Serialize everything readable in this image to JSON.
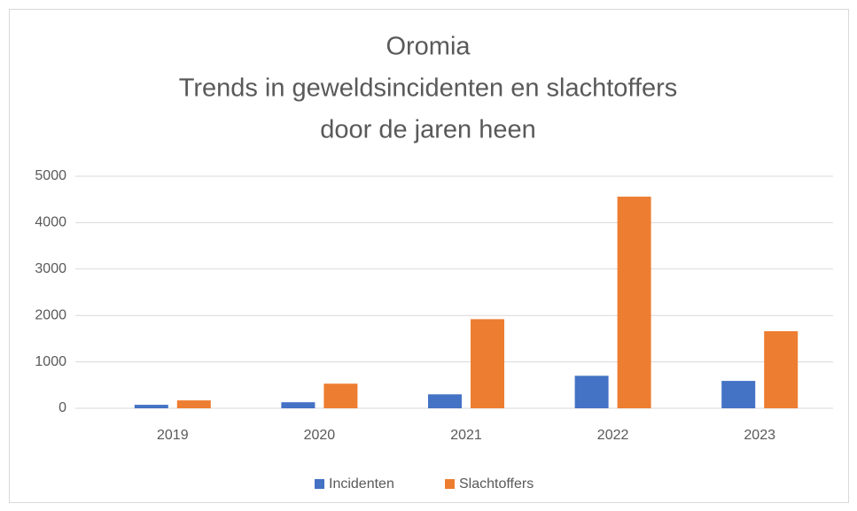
{
  "chart_data": {
    "type": "bar",
    "title": [
      "Oromia",
      "Trends in geweldsincidenten en slachtoffers",
      "door de jaren heen"
    ],
    "categories": [
      "2019",
      "2020",
      "2021",
      "2022",
      "2023"
    ],
    "series": [
      {
        "name": "Incidenten",
        "color": "#4472c4",
        "values": [
          75,
          130,
          300,
          700,
          590
        ]
      },
      {
        "name": "Slachtoffers",
        "color": "#ed7d31",
        "values": [
          170,
          530,
          1920,
          4560,
          1660
        ]
      }
    ],
    "ylim": [
      0,
      5000
    ],
    "yticks": [
      0,
      1000,
      2000,
      3000,
      4000,
      5000
    ],
    "grid": true,
    "legend": "bottom"
  }
}
